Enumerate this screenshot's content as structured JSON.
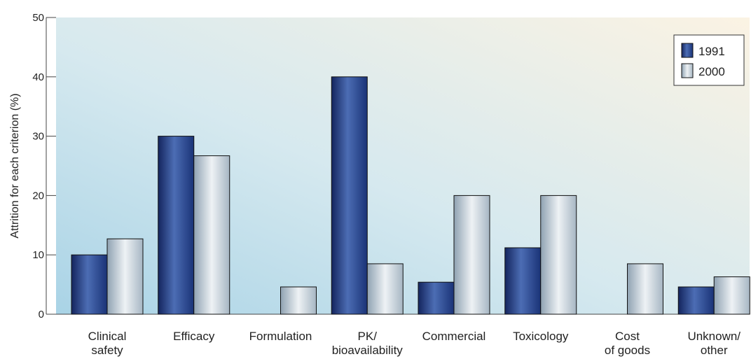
{
  "chart_data": {
    "type": "bar",
    "title": "",
    "xlabel": "",
    "ylabel": "Attrition for each criterion (%)",
    "ylim": [
      0,
      50
    ],
    "yticks": [
      "0",
      "10",
      "20",
      "30",
      "40",
      "50"
    ],
    "grid": false,
    "legend_position": "top-right",
    "categories": [
      "Clinical\nsafety",
      "Efficacy",
      "Formulation",
      "PK/\nbioavailability",
      "Commercial",
      "Toxicology",
      "Cost\nof goods",
      "Unknown/\nother"
    ],
    "series": [
      {
        "name": "1991",
        "color": "#1f3f8c",
        "values": [
          10,
          30,
          0,
          40,
          5.4,
          11.2,
          0,
          4.6
        ]
      },
      {
        "name": "2000",
        "color": "#c9d4dd",
        "values": [
          12.7,
          26.7,
          4.6,
          8.5,
          20,
          20,
          8.5,
          6.3
        ]
      }
    ]
  }
}
